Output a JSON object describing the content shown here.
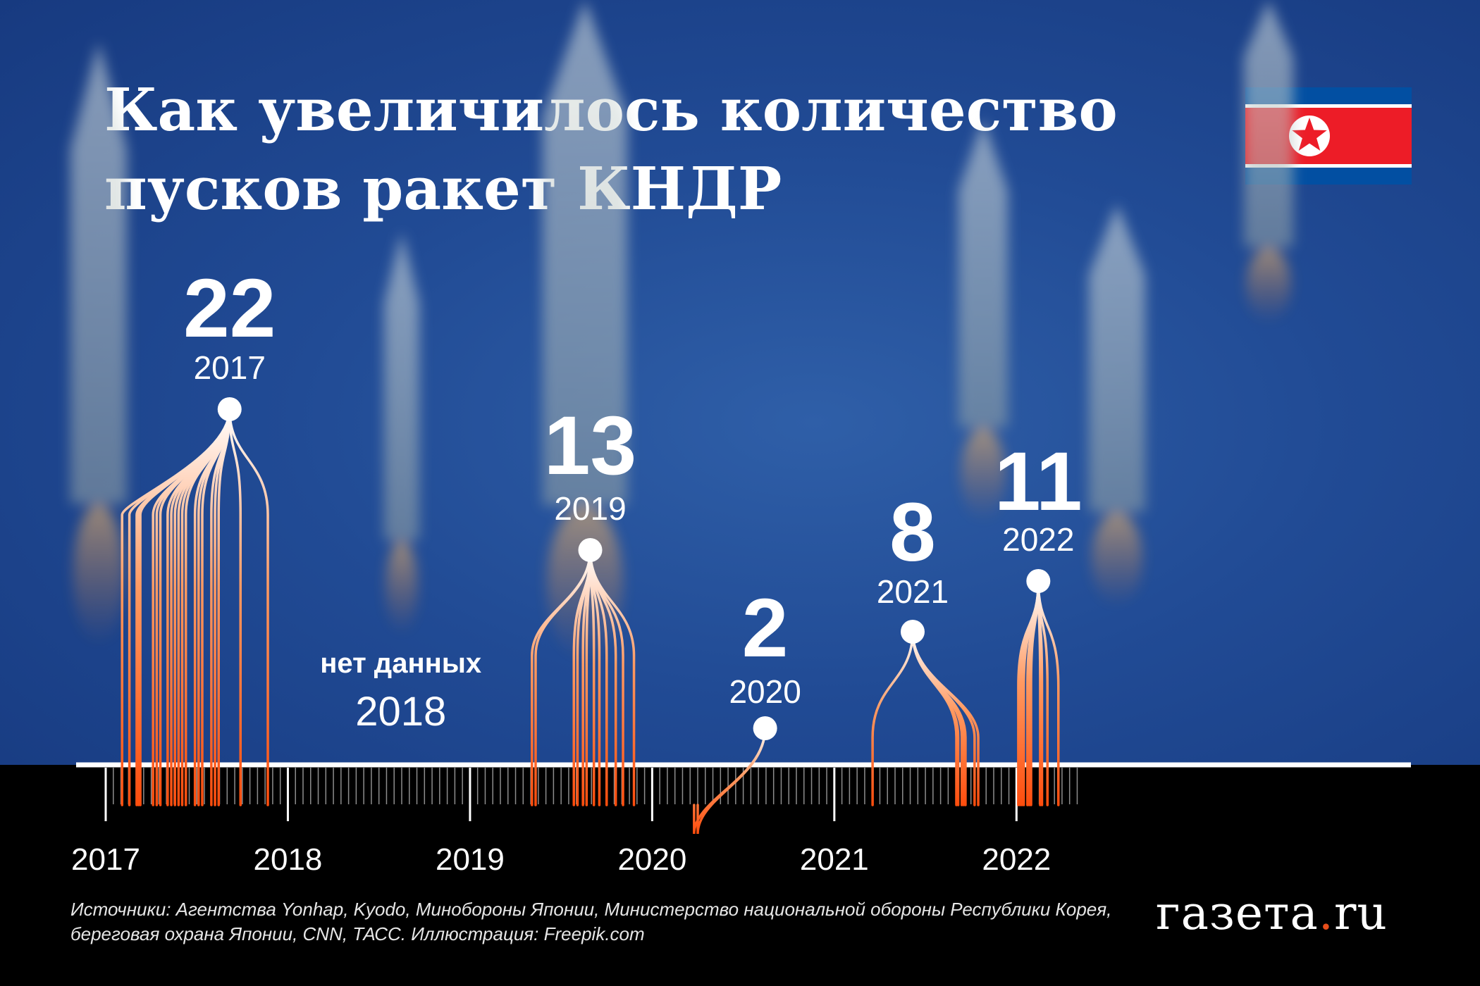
{
  "title": {
    "line1": "Как увеличилось количество",
    "line2": "пусков ракет КНДР"
  },
  "flag": {
    "name": "north-korea-flag",
    "colors": {
      "blue": "#024fa2",
      "red": "#ed1c27",
      "white": "#ffffff"
    }
  },
  "chart_data": {
    "type": "timeline",
    "title": "Как увеличилось количество пусков ракет КНДР",
    "x_axis": {
      "ticks": [
        "2017",
        "2018",
        "2019",
        "2020",
        "2021",
        "2022"
      ]
    },
    "series": [
      {
        "name": "пуски ракет",
        "color": "#ff5a14"
      }
    ],
    "totals": [
      {
        "year": "2017",
        "value": "22"
      },
      {
        "year": "2018",
        "value": "нет данных"
      },
      {
        "year": "2019",
        "value": "13"
      },
      {
        "year": "2020",
        "value": "2"
      },
      {
        "year": "2021",
        "value": "8"
      },
      {
        "year": "2022",
        "value": "11"
      }
    ],
    "events": [
      {
        "year": "2017",
        "dates": [
          2017.09,
          2017.13,
          2017.17,
          2017.18,
          2017.19,
          2017.26,
          2017.28,
          2017.3,
          2017.34,
          2017.36,
          2017.38,
          2017.4,
          2017.42,
          2017.44,
          2017.49,
          2017.51,
          2017.53,
          2017.58,
          2017.6,
          2017.62,
          2017.74,
          2017.89
        ]
      },
      {
        "year": "2019",
        "dates": [
          2019.34,
          2019.36,
          2019.57,
          2019.59,
          2019.62,
          2019.64,
          2019.66,
          2019.68,
          2019.71,
          2019.75,
          2019.8,
          2019.84,
          2019.9
        ]
      },
      {
        "year": "2020",
        "dates": [
          2020.23,
          2020.25
        ]
      },
      {
        "year": "2021",
        "dates": [
          2021.21,
          2021.67,
          2021.68,
          2021.7,
          2021.71,
          2021.72,
          2021.77,
          2021.79
        ]
      },
      {
        "year": "2022",
        "dates": [
          2022.01,
          2022.02,
          2022.03,
          2022.04,
          2022.06,
          2022.07,
          2022.08,
          2022.13,
          2022.14,
          2022.17,
          2022.23
        ]
      }
    ]
  },
  "sources": {
    "line1": "Источники: Агентства Yonhap, Kyodo, Минобороны Японии, Министерство национальной обороны Республики Корея,",
    "line2": "береговая охрана Японии, CNN, ТАСС. Иллюстрация: Freepik.com"
  },
  "logo": {
    "name": "газета",
    "dot": ".",
    "tld": "ru"
  }
}
